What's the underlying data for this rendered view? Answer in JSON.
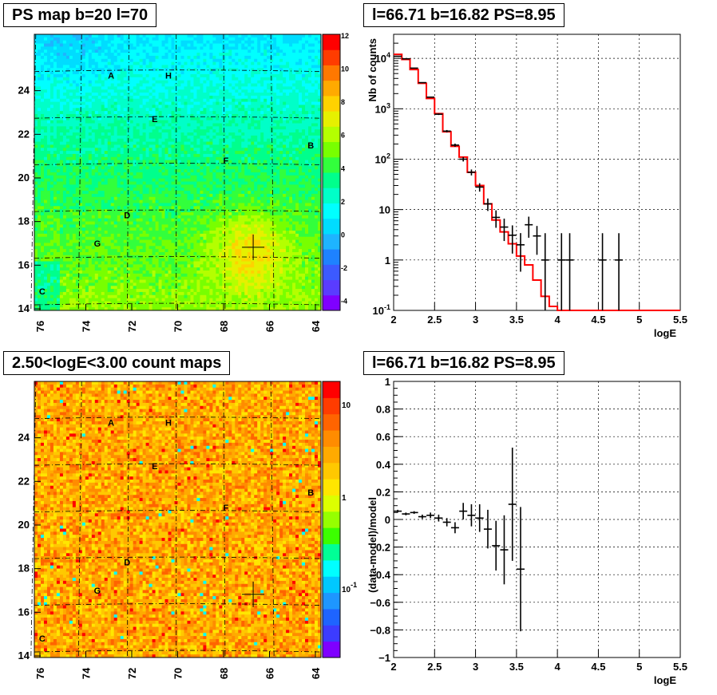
{
  "panels": {
    "tl_title": "PS map b=20 l=70",
    "tr_title": "l=66.71 b=16.82 PS=8.95",
    "bl_title": "2.50<logE<3.00 count maps",
    "br_title": "l=66.71 b=16.82 PS=8.95"
  },
  "colors": {
    "model_line": "#ff0000",
    "data_marker": "#000000",
    "grid": "#000000"
  },
  "chart_data": [
    {
      "type": "heatmap",
      "title": "PS map b=20 l=70",
      "x_ticks": [
        "76",
        "74",
        "72",
        "70",
        "68",
        "66",
        "64"
      ],
      "y_ticks": [
        "14",
        "16",
        "18",
        "20",
        "22",
        "24"
      ],
      "xlim": [
        76,
        64
      ],
      "ylim": [
        14,
        25.8
      ],
      "colorbar_ticks": [
        "12",
        "10",
        "8",
        "6",
        "4",
        "2",
        "0",
        "-2",
        "-4"
      ],
      "colorbar_range": [
        -5,
        12
      ],
      "source_labels": [
        {
          "text": "A",
          "l": 72.9,
          "b": 24.7
        },
        {
          "text": "H",
          "l": 70.4,
          "b": 24.7
        },
        {
          "text": "E",
          "l": 71.0,
          "b": 22.7
        },
        {
          "text": "B",
          "l": 64.2,
          "b": 21.5
        },
        {
          "text": "F",
          "l": 67.9,
          "b": 20.8
        },
        {
          "text": "D",
          "l": 72.2,
          "b": 18.3
        },
        {
          "text": "G",
          "l": 73.5,
          "b": 17.0
        },
        {
          "text": "C",
          "l": 75.9,
          "b": 14.8
        }
      ],
      "marker": {
        "l": 66.71,
        "b": 16.82
      }
    },
    {
      "type": "line",
      "title": "l=66.71 b=16.82 PS=8.95",
      "xlabel": "logE",
      "ylabel": "Nb of counts",
      "xlim": [
        2,
        5.5
      ],
      "ylim": [
        0.1,
        30000
      ],
      "yscale": "log",
      "x_ticks": [
        "2",
        "2.5",
        "3",
        "3.5",
        "4",
        "4.5",
        "5",
        "5.5"
      ],
      "y_ticks": [
        "10^-1",
        "1",
        "10",
        "10^2",
        "10^3",
        "10^4"
      ],
      "grid": true,
      "series": [
        {
          "style": "model-step",
          "edges": [
            2.0,
            2.1,
            2.2,
            2.3,
            2.4,
            2.5,
            2.6,
            2.7,
            2.8,
            2.9,
            3.0,
            3.1,
            3.2,
            3.3,
            3.4,
            3.5,
            3.6,
            3.7,
            3.8,
            3.9,
            4.0,
            4.1,
            5.5
          ],
          "values": [
            12000,
            9500,
            6000,
            3200,
            1600,
            800,
            350,
            180,
            110,
            55,
            30,
            13,
            6.2,
            3.6,
            2.1,
            1.2,
            0.8,
            0.4,
            0.19,
            0.12,
            0.1,
            0.1
          ]
        },
        {
          "style": "data-points",
          "x": [
            2.05,
            2.15,
            2.25,
            2.35,
            2.45,
            2.55,
            2.65,
            2.75,
            2.85,
            2.95,
            3.05,
            3.15,
            3.25,
            3.35,
            3.45,
            3.55,
            3.65,
            3.75,
            3.85,
            4.05,
            4.15,
            4.55,
            4.75
          ],
          "y": [
            11000,
            9800,
            6400,
            3300,
            1700,
            780,
            360,
            190,
            100,
            55,
            28,
            13,
            7,
            4.5,
            3.1,
            2,
            5,
            3,
            1,
            1,
            1,
            1,
            1
          ]
        }
      ]
    },
    {
      "type": "heatmap",
      "title": "2.50<logE<3.00 count maps",
      "x_ticks": [
        "76",
        "74",
        "72",
        "70",
        "68",
        "66",
        "64"
      ],
      "y_ticks": [
        "14",
        "16",
        "18",
        "20",
        "22",
        "24"
      ],
      "colorbar_ticks": [
        "10",
        "1",
        "10^-1"
      ],
      "colorbar_scale": "log"
    },
    {
      "type": "scatter",
      "title": "l=66.71 b=16.82 PS=8.95",
      "xlabel": "logE",
      "ylabel": "(data-model)/model",
      "xlim": [
        2,
        5.5
      ],
      "ylim": [
        -1,
        1
      ],
      "x_ticks": [
        "2",
        "2.5",
        "3",
        "3.5",
        "4",
        "4.5",
        "5",
        "5.5"
      ],
      "y_ticks": [
        "1",
        "0.8",
        "0.6",
        "0.4",
        "0.2",
        "0",
        "-0.2",
        "-0.4",
        "-0.6",
        "-0.8",
        "-1"
      ],
      "grid": true,
      "points": [
        {
          "x": 2.05,
          "y": 0.06,
          "err": 0.01
        },
        {
          "x": 2.15,
          "y": 0.04,
          "err": 0.01
        },
        {
          "x": 2.25,
          "y": 0.05,
          "err": 0.01
        },
        {
          "x": 2.35,
          "y": 0.02,
          "err": 0.015
        },
        {
          "x": 2.45,
          "y": 0.03,
          "err": 0.02
        },
        {
          "x": 2.55,
          "y": 0.01,
          "err": 0.025
        },
        {
          "x": 2.65,
          "y": -0.02,
          "err": 0.03
        },
        {
          "x": 2.75,
          "y": -0.06,
          "err": 0.04
        },
        {
          "x": 2.85,
          "y": 0.06,
          "err": 0.06
        },
        {
          "x": 2.95,
          "y": 0.03,
          "err": 0.08
        },
        {
          "x": 3.05,
          "y": 0.01,
          "err": 0.1
        },
        {
          "x": 3.15,
          "y": -0.07,
          "err": 0.14
        },
        {
          "x": 3.25,
          "y": -0.19,
          "err": 0.18
        },
        {
          "x": 3.35,
          "y": -0.22,
          "err": 0.25
        },
        {
          "x": 3.45,
          "y": 0.11,
          "err": 0.41
        },
        {
          "x": 3.55,
          "y": -0.36,
          "err": 0.45
        }
      ]
    }
  ]
}
